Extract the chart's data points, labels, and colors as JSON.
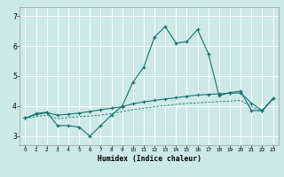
{
  "title": "",
  "xlabel": "Humidex (Indice chaleur)",
  "xlim": [
    -0.5,
    23.5
  ],
  "ylim": [
    2.7,
    7.3
  ],
  "xticks": [
    0,
    1,
    2,
    3,
    4,
    5,
    6,
    7,
    8,
    9,
    10,
    11,
    12,
    13,
    14,
    15,
    16,
    17,
    18,
    19,
    20,
    21,
    22,
    23
  ],
  "yticks": [
    3,
    4,
    5,
    6,
    7
  ],
  "bg_color": "#cce8e8",
  "grid_color": "#ffffff",
  "line_color": "#1a7070",
  "line1_x": [
    0,
    1,
    2,
    3,
    4,
    5,
    6,
    7,
    8,
    9,
    10,
    11,
    12,
    13,
    14,
    15,
    16,
    17,
    18,
    19,
    20,
    21,
    22,
    23
  ],
  "line1_y": [
    3.6,
    3.75,
    3.8,
    3.35,
    3.35,
    3.3,
    3.0,
    3.35,
    3.7,
    4.0,
    4.8,
    5.3,
    6.3,
    6.65,
    6.1,
    6.15,
    6.55,
    5.75,
    4.35,
    4.45,
    4.5,
    3.85,
    3.85,
    4.25
  ],
  "line2_x": [
    0,
    1,
    2,
    3,
    4,
    5,
    6,
    7,
    8,
    9,
    10,
    11,
    12,
    13,
    14,
    15,
    16,
    17,
    18,
    19,
    20,
    21,
    22,
    23
  ],
  "line2_y": [
    3.6,
    3.72,
    3.78,
    3.7,
    3.73,
    3.77,
    3.82,
    3.88,
    3.93,
    3.98,
    4.08,
    4.14,
    4.19,
    4.24,
    4.28,
    4.33,
    4.37,
    4.39,
    4.41,
    4.43,
    4.44,
    4.1,
    3.85,
    4.25
  ],
  "line3_x": [
    0,
    1,
    2,
    3,
    4,
    5,
    6,
    7,
    8,
    9,
    10,
    11,
    12,
    13,
    14,
    15,
    16,
    17,
    18,
    19,
    20,
    21,
    22,
    23
  ],
  "line3_y": [
    3.58,
    3.65,
    3.7,
    3.58,
    3.62,
    3.65,
    3.67,
    3.7,
    3.75,
    3.82,
    3.88,
    3.93,
    3.98,
    4.02,
    4.06,
    4.09,
    4.11,
    4.13,
    4.15,
    4.17,
    4.19,
    3.98,
    3.83,
    4.22
  ]
}
